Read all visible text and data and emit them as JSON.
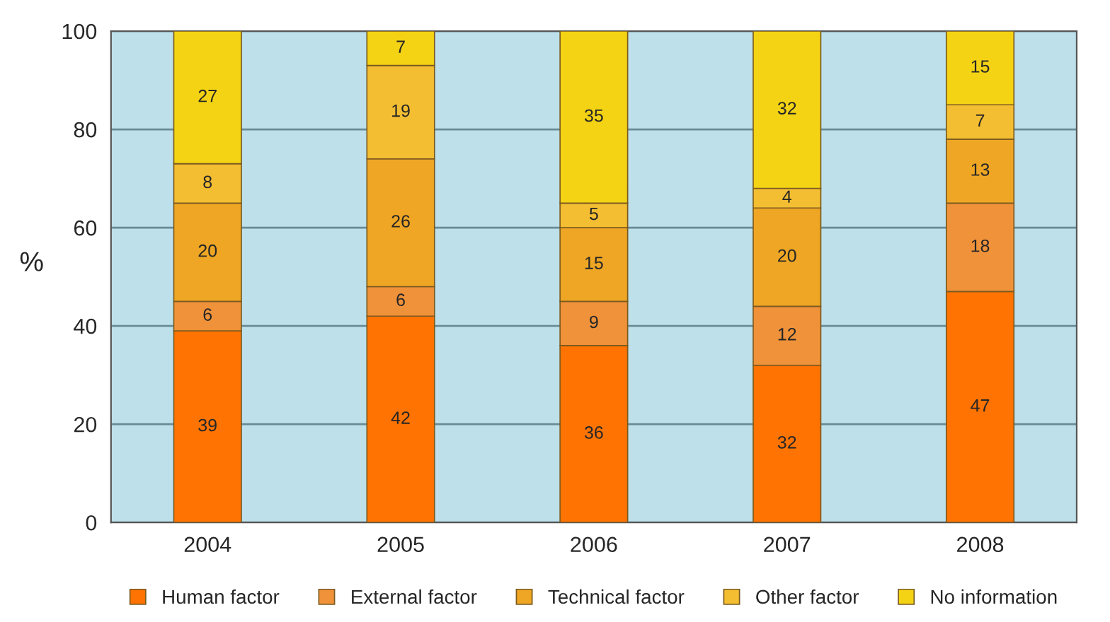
{
  "chart_data": {
    "type": "bar",
    "stacked": true,
    "ylabel": "%",
    "categories": [
      "2004",
      "2005",
      "2006",
      "2007",
      "2008"
    ],
    "series": [
      {
        "name": "Human factor",
        "color": "#fe7302",
        "values": [
          39,
          42,
          36,
          32,
          47
        ]
      },
      {
        "name": "External factor",
        "color": "#f0923a",
        "values": [
          6,
          6,
          9,
          12,
          18
        ]
      },
      {
        "name": "Technical factor",
        "color": "#eea624",
        "values": [
          20,
          26,
          15,
          20,
          13
        ]
      },
      {
        "name": "Other factor",
        "color": "#f4be32",
        "values": [
          8,
          19,
          5,
          4,
          7
        ]
      },
      {
        "name": "No information",
        "color": "#f4d314",
        "values": [
          27,
          7,
          35,
          32,
          15
        ]
      }
    ],
    "ylim": [
      0,
      100
    ],
    "yticks": [
      0,
      20,
      40,
      60,
      80,
      100
    ],
    "grid": "y",
    "legend": "bottom",
    "data_labels": true
  }
}
